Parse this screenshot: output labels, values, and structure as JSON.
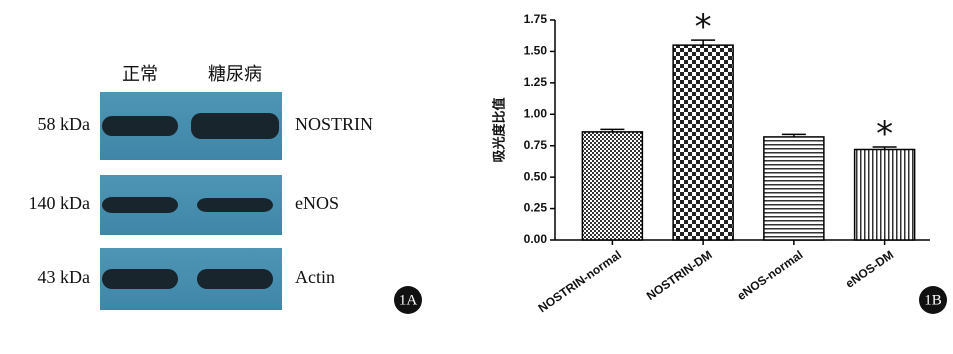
{
  "blot": {
    "lanes": [
      "正常",
      "糖尿病"
    ],
    "rows": [
      {
        "size": "58 kDa",
        "protein": "NOSTRIN"
      },
      {
        "size": "140 kDa",
        "protein": "eNOS"
      },
      {
        "size": "43 kDa",
        "protein": "Actin"
      }
    ],
    "panel": "1A"
  },
  "chart_data": {
    "type": "bar",
    "panel": "1B",
    "ylabel": "吸光度比值",
    "categories": [
      "NOSTRIN-normal",
      "NOSTRIN-DM",
      "eNOS-normal",
      "eNOS-DM"
    ],
    "values": [
      0.86,
      1.55,
      0.82,
      0.72
    ],
    "errors": [
      0.02,
      0.04,
      0.02,
      0.02
    ],
    "annotations": [
      null,
      "*",
      null,
      "*"
    ],
    "ylim": [
      0,
      1.75
    ],
    "yticks": [
      {
        "value": 0,
        "label": "0.00"
      },
      {
        "value": 0.25,
        "label": "0.25"
      },
      {
        "value": 0.5,
        "label": "0.50"
      },
      {
        "value": 0.75,
        "label": "0.75"
      },
      {
        "value": 1,
        "label": "1.00"
      },
      {
        "value": 1.25,
        "label": "1.25"
      },
      {
        "value": 1.5,
        "label": "1.50"
      },
      {
        "value": 1.75,
        "label": "1.75"
      }
    ]
  }
}
